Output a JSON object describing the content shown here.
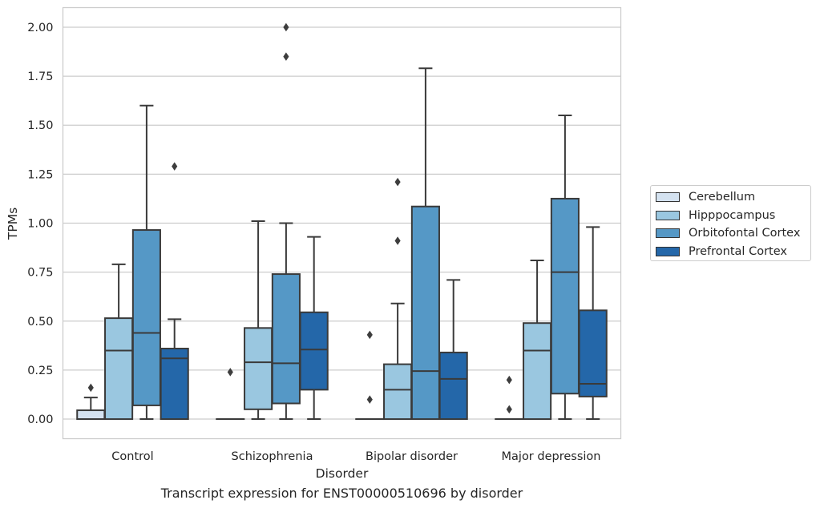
{
  "caption": "Transcript expression for ENST00000510696 by disorder",
  "chart_data": {
    "type": "box",
    "xlabel": "Disorder",
    "ylabel": "TPMs",
    "ylim": [
      -0.1,
      2.1
    ],
    "yticks": [
      "0.00",
      "0.25",
      "0.50",
      "0.75",
      "1.00",
      "1.25",
      "1.50",
      "1.75",
      "2.00"
    ],
    "grid": "horizontal",
    "legend_position": "right",
    "categories": [
      "Control",
      "Schizophrenia",
      "Bipolar disorder",
      "Major depression"
    ],
    "series": [
      {
        "name": "Cerebellum",
        "color": "#d4e2f0",
        "boxes": [
          {
            "whislo": 0.0,
            "q1": 0.0,
            "med": 0.0,
            "q3": 0.045,
            "whishi": 0.11,
            "fliers": [
              0.16
            ]
          },
          {
            "whislo": 0.0,
            "q1": 0.0,
            "med": 0.0,
            "q3": 0.0,
            "whishi": 0.0,
            "fliers": [
              0.24
            ]
          },
          {
            "whislo": 0.0,
            "q1": 0.0,
            "med": 0.0,
            "q3": 0.0,
            "whishi": 0.0,
            "fliers": [
              0.1,
              0.43
            ]
          },
          {
            "whislo": 0.0,
            "q1": 0.0,
            "med": 0.0,
            "q3": 0.0,
            "whishi": 0.0,
            "fliers": [
              0.05,
              0.2
            ]
          }
        ]
      },
      {
        "name": "Hipppocampus",
        "color": "#9ac7e0",
        "boxes": [
          {
            "whislo": 0.0,
            "q1": 0.0,
            "med": 0.35,
            "q3": 0.515,
            "whishi": 0.79,
            "fliers": []
          },
          {
            "whislo": 0.0,
            "q1": 0.05,
            "med": 0.29,
            "q3": 0.465,
            "whishi": 1.01,
            "fliers": []
          },
          {
            "whislo": 0.0,
            "q1": 0.0,
            "med": 0.15,
            "q3": 0.28,
            "whishi": 0.59,
            "fliers": [
              0.91,
              1.21
            ]
          },
          {
            "whislo": 0.0,
            "q1": 0.0,
            "med": 0.35,
            "q3": 0.49,
            "whishi": 0.81,
            "fliers": []
          }
        ]
      },
      {
        "name": "Orbitofontal Cortex",
        "color": "#5598c6",
        "boxes": [
          {
            "whislo": 0.0,
            "q1": 0.07,
            "med": 0.44,
            "q3": 0.965,
            "whishi": 1.6,
            "fliers": []
          },
          {
            "whislo": 0.0,
            "q1": 0.08,
            "med": 0.285,
            "q3": 0.74,
            "whishi": 1.0,
            "fliers": [
              1.85,
              2.0
            ]
          },
          {
            "whislo": 0.0,
            "q1": 0.0,
            "med": 0.245,
            "q3": 1.085,
            "whishi": 1.79,
            "fliers": []
          },
          {
            "whislo": 0.0,
            "q1": 0.13,
            "med": 0.75,
            "q3": 1.125,
            "whishi": 1.55,
            "fliers": []
          }
        ]
      },
      {
        "name": "Prefrontal Cortex",
        "color": "#2467a9",
        "boxes": [
          {
            "whislo": 0.0,
            "q1": 0.0,
            "med": 0.31,
            "q3": 0.36,
            "whishi": 0.51,
            "fliers": [
              1.29
            ]
          },
          {
            "whislo": 0.0,
            "q1": 0.15,
            "med": 0.355,
            "q3": 0.545,
            "whishi": 0.93,
            "fliers": []
          },
          {
            "whislo": 0.0,
            "q1": 0.0,
            "med": 0.205,
            "q3": 0.34,
            "whishi": 0.71,
            "fliers": []
          },
          {
            "whislo": 0.0,
            "q1": 0.115,
            "med": 0.18,
            "q3": 0.555,
            "whishi": 0.98,
            "fliers": []
          }
        ]
      }
    ]
  }
}
